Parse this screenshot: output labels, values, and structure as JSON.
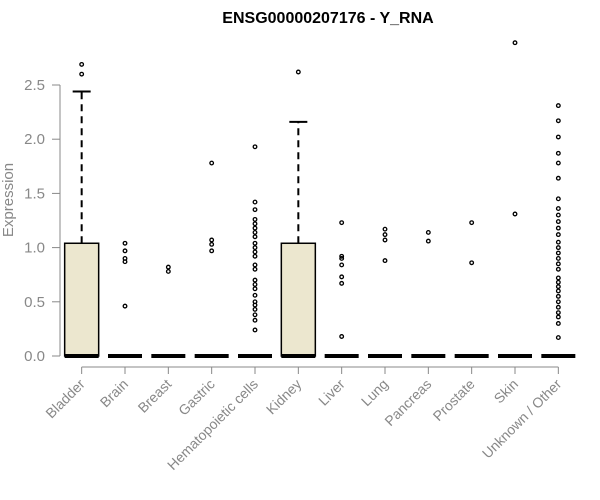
{
  "chart_data": {
    "type": "boxplot",
    "title": "ENSG00000207176 - Y_RNA",
    "xlabel": "",
    "ylabel": "Expression",
    "ylim": [
      0,
      2.9
    ],
    "yticks": [
      0.0,
      0.5,
      1.0,
      1.5,
      2.0,
      2.5
    ],
    "ytick_labels": [
      "0.0",
      "0.5",
      "1.0",
      "1.5",
      "2.0",
      "2.5"
    ],
    "box_fill": "#ece7cf",
    "grid": false,
    "categories": [
      "Bladder",
      "Brain",
      "Breast",
      "Gastric",
      "Hematopoietic cells",
      "Kidney",
      "Liver",
      "Lung",
      "Pancreas",
      "Prostate",
      "Skin",
      "Unknown / Other"
    ],
    "boxes": [
      {
        "name": "Bladder",
        "q1": 0,
        "median": 0,
        "q3": 1.04,
        "whisker_low": 0,
        "whisker_high": 2.44,
        "outliers": [
          2.6,
          2.69
        ]
      },
      {
        "name": "Brain",
        "q1": 0,
        "median": 0,
        "q3": 0,
        "whisker_low": 0,
        "whisker_high": 0,
        "outliers": [
          0.46,
          0.87,
          0.9,
          0.97,
          1.04
        ]
      },
      {
        "name": "Breast",
        "q1": 0,
        "median": 0,
        "q3": 0,
        "whisker_low": 0,
        "whisker_high": 0,
        "outliers": [
          0.78,
          0.82
        ]
      },
      {
        "name": "Gastric",
        "q1": 0,
        "median": 0,
        "q3": 0,
        "whisker_low": 0,
        "whisker_high": 0,
        "outliers": [
          0.97,
          1.03,
          1.07,
          1.78
        ]
      },
      {
        "name": "Hematopoietic cells",
        "q1": 0,
        "median": 0,
        "q3": 0,
        "whisker_low": 0,
        "whisker_high": 0,
        "outliers": [
          0.24,
          0.33,
          0.38,
          0.43,
          0.47,
          0.5,
          0.56,
          0.62,
          0.66,
          0.7,
          0.8,
          0.84,
          0.92,
          0.96,
          1.0,
          1.04,
          1.1,
          1.14,
          1.18,
          1.22,
          1.26,
          1.35,
          1.42,
          1.93
        ]
      },
      {
        "name": "Kidney",
        "q1": 0,
        "median": 0,
        "q3": 1.04,
        "whisker_low": 0,
        "whisker_high": 2.16,
        "outliers": [
          2.62
        ]
      },
      {
        "name": "Liver",
        "q1": 0,
        "median": 0,
        "q3": 0,
        "whisker_low": 0,
        "whisker_high": 0,
        "outliers": [
          0.18,
          0.67,
          0.73,
          0.84,
          0.9,
          0.92,
          1.23
        ]
      },
      {
        "name": "Lung",
        "q1": 0,
        "median": 0,
        "q3": 0,
        "whisker_low": 0,
        "whisker_high": 0,
        "outliers": [
          0.88,
          1.07,
          1.12,
          1.17
        ]
      },
      {
        "name": "Pancreas",
        "q1": 0,
        "median": 0,
        "q3": 0,
        "whisker_low": 0,
        "whisker_high": 0,
        "outliers": [
          1.06,
          1.14
        ]
      },
      {
        "name": "Prostate",
        "q1": 0,
        "median": 0,
        "q3": 0,
        "whisker_low": 0,
        "whisker_high": 0,
        "outliers": [
          0.86,
          1.23
        ]
      },
      {
        "name": "Skin",
        "q1": 0,
        "median": 0,
        "q3": 0,
        "whisker_low": 0,
        "whisker_high": 0,
        "outliers": [
          1.31,
          2.89
        ]
      },
      {
        "name": "Unknown / Other",
        "q1": 0,
        "median": 0,
        "q3": 0,
        "whisker_low": 0,
        "whisker_high": 0,
        "outliers": [
          0.17,
          0.3,
          0.36,
          0.4,
          0.45,
          0.5,
          0.55,
          0.6,
          0.64,
          0.68,
          0.72,
          0.8,
          0.85,
          0.9,
          0.95,
          1.0,
          1.05,
          1.12,
          1.18,
          1.24,
          1.3,
          1.36,
          1.45,
          1.64,
          1.78,
          1.87,
          2.02,
          2.17,
          2.31
        ]
      }
    ]
  }
}
